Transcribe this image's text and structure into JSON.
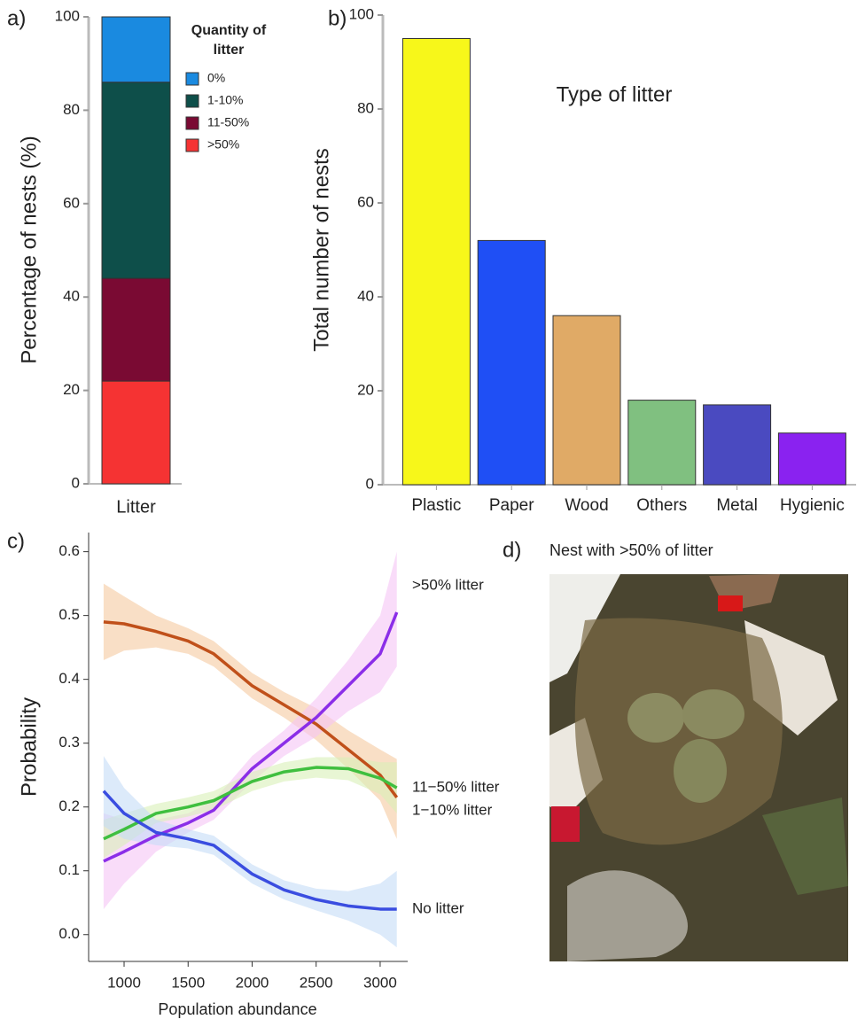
{
  "chart_data": [
    {
      "type": "stacked-bar",
      "panel_label": "a)",
      "y_label": "Percentage of nests (%)",
      "legend_title": "Quantity of litter",
      "categories": [
        "Litter"
      ],
      "series": [
        {
          "name": ">50%",
          "color": "#f53333",
          "values": [
            22
          ]
        },
        {
          "name": "11-50%",
          "color": "#7a0a33",
          "values": [
            22
          ]
        },
        {
          "name": "1-10%",
          "color": "#0e4f4a",
          "values": [
            42
          ]
        },
        {
          "name": "0%",
          "color": "#1a8ae0",
          "values": [
            14
          ]
        }
      ],
      "ylim": [
        0,
        100
      ],
      "yticks": [
        0,
        20,
        40,
        60,
        80,
        100
      ]
    },
    {
      "type": "bar",
      "panel_label": "b)",
      "title": "Type of litter",
      "y_label": "Total number of nests",
      "categories": [
        "Plastic",
        "Paper",
        "Wood",
        "Others",
        "Metal",
        "Hygienic"
      ],
      "values": [
        95,
        52,
        36,
        18,
        17,
        11
      ],
      "colors": [
        "#f7f71a",
        "#1f4ff5",
        "#e0aa66",
        "#80c080",
        "#4a4ac0",
        "#8a22f0"
      ],
      "ylim": [
        0,
        100
      ],
      "yticks": [
        0,
        20,
        40,
        60,
        80,
        100
      ]
    },
    {
      "type": "line",
      "panel_label": "c)",
      "x_label": "Population abundance",
      "y_label": "Probability",
      "x": [
        840,
        1000,
        1250,
        1500,
        1700,
        2000,
        2250,
        2500,
        2750,
        3000,
        3130
      ],
      "series": [
        {
          "name": "1−10% litter",
          "color": "#c0501a",
          "band_color": "#f5c9a0",
          "values": [
            0.49,
            0.487,
            0.475,
            0.46,
            0.44,
            0.39,
            0.36,
            0.33,
            0.29,
            0.25,
            0.215
          ],
          "upper": [
            0.55,
            0.53,
            0.5,
            0.48,
            0.46,
            0.41,
            0.38,
            0.355,
            0.32,
            0.29,
            0.275
          ],
          "lower": [
            0.43,
            0.445,
            0.45,
            0.44,
            0.42,
            0.37,
            0.34,
            0.305,
            0.26,
            0.21,
            0.15
          ]
        },
        {
          "name": ">50% litter",
          "color": "#8b2ee8",
          "band_color": "#f5c4f5",
          "values": [
            0.115,
            0.13,
            0.155,
            0.175,
            0.195,
            0.26,
            0.3,
            0.34,
            0.39,
            0.44,
            0.505
          ],
          "upper": [
            0.19,
            0.18,
            0.18,
            0.19,
            0.21,
            0.28,
            0.32,
            0.37,
            0.43,
            0.5,
            0.6
          ],
          "lower": [
            0.04,
            0.08,
            0.13,
            0.16,
            0.18,
            0.24,
            0.28,
            0.31,
            0.35,
            0.38,
            0.42
          ]
        },
        {
          "name": "11−50% litter",
          "color": "#3fbf3f",
          "band_color": "#d8f0b8",
          "values": [
            0.15,
            0.165,
            0.19,
            0.2,
            0.21,
            0.24,
            0.255,
            0.262,
            0.26,
            0.245,
            0.23
          ],
          "upper": [
            0.18,
            0.19,
            0.205,
            0.215,
            0.225,
            0.255,
            0.27,
            0.278,
            0.278,
            0.27,
            0.27
          ],
          "lower": [
            0.12,
            0.14,
            0.175,
            0.185,
            0.195,
            0.225,
            0.24,
            0.246,
            0.242,
            0.22,
            0.19
          ]
        },
        {
          "name": "No litter",
          "color": "#3a4de0",
          "band_color": "#c4dcf7",
          "values": [
            0.225,
            0.19,
            0.16,
            0.15,
            0.14,
            0.095,
            0.07,
            0.055,
            0.045,
            0.04,
            0.04
          ],
          "upper": [
            0.28,
            0.23,
            0.18,
            0.165,
            0.155,
            0.11,
            0.085,
            0.072,
            0.068,
            0.08,
            0.1
          ],
          "lower": [
            0.17,
            0.15,
            0.14,
            0.135,
            0.125,
            0.08,
            0.055,
            0.038,
            0.022,
            0.0,
            -0.02
          ]
        }
      ],
      "xlim": [
        723,
        3215
      ],
      "xticks": [
        1000,
        1500,
        2000,
        2500,
        3000
      ],
      "ylim": [
        -0.042,
        0.63
      ],
      "yticks": [
        {
          "value": 0,
          "label": "0.0"
        },
        0.1,
        0.2,
        0.3,
        0.4,
        0.5,
        0.6
      ]
    }
  ],
  "photo": {
    "label": "d)",
    "caption": "Nest with >50% of litter"
  }
}
